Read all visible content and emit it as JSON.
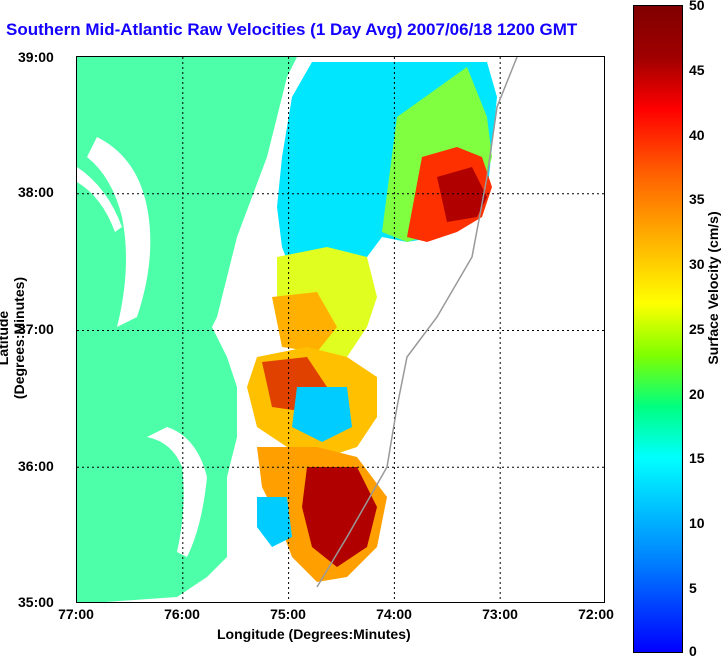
{
  "title": "Southern Mid-Atlantic Raw Velocities (1 Day Avg) 2007/06/18 1200 GMT",
  "map": {
    "x_label": "Longitude (Degrees:Minutes)",
    "y_label": "Latitude (Degrees:Minutes)",
    "x_ticks": [
      "77:00",
      "76:00",
      "75:00",
      "74:00",
      "73:00",
      "72:00"
    ],
    "y_ticks": [
      "39:00",
      "38:00",
      "37:00",
      "36:00",
      "35:00"
    ],
    "lon_range": [
      -77,
      -72
    ],
    "lat_range": [
      35,
      39
    ],
    "land_color": "#4cffa8",
    "water_color": "#ffffff"
  },
  "colorbar": {
    "label": "Surface Velocity (cm/s)",
    "ticks": [
      "50",
      "45",
      "40",
      "35",
      "30",
      "25",
      "20",
      "15",
      "10",
      "5",
      "0"
    ],
    "range": [
      0,
      50
    ]
  }
}
